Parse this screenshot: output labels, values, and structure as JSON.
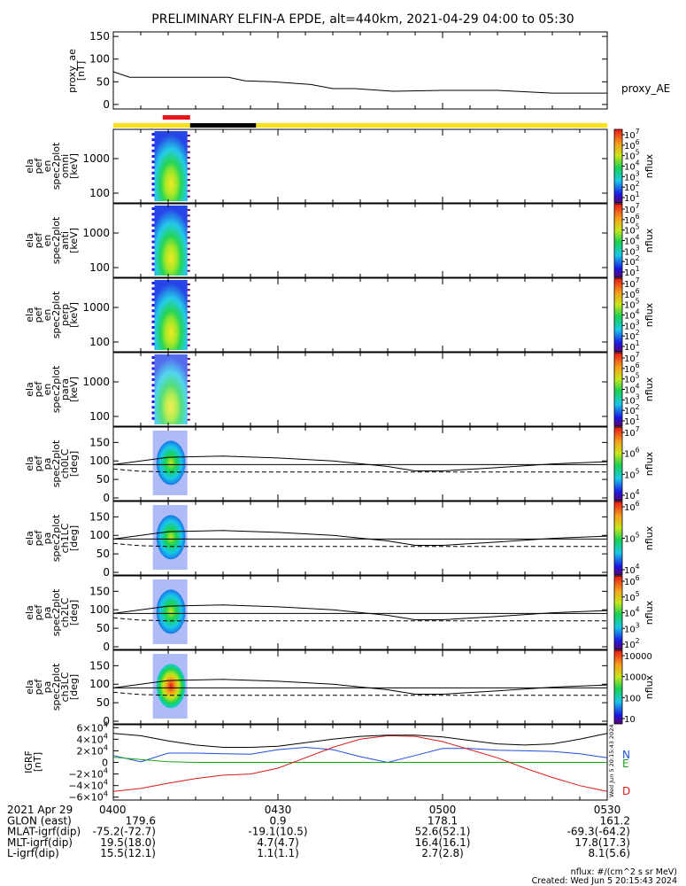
{
  "title": "PRELIMINARY ELFIN-A EPDE, alt=440km, 2021-04-29 04:00 to 05:30",
  "colors": {
    "bar_yellow": "#f7e11b",
    "bar_red": "#e8161a",
    "bar_black": "#000000",
    "line": "#000000",
    "grf_n": "#1f4fd8",
    "grf_e": "#1aa61a",
    "grf_d": "#d81a1a"
  },
  "status_bar": {
    "yellow_bar": "full",
    "red_segment": [
      "04:09",
      "04:14"
    ],
    "black_segment": [
      "04:14",
      "04:26"
    ]
  },
  "chart_data": [
    {
      "id": "proxy_ae",
      "type": "line",
      "ylabel": [
        "proxy_ae",
        "[nT]"
      ],
      "legend": "proxy_AE",
      "ylim": [
        -10,
        160
      ],
      "yticks": [
        "0",
        "50",
        "100",
        "150"
      ],
      "x_minutes": [
        0,
        3,
        9,
        15,
        21,
        24,
        29,
        36,
        40,
        44,
        51,
        60,
        70,
        80,
        90
      ],
      "values": [
        72,
        60,
        60,
        60,
        60,
        52,
        50,
        44,
        35,
        35,
        29,
        31,
        31,
        25,
        25
      ]
    },
    {
      "id": "en_omni",
      "type": "heatmap",
      "ylabel": [
        "ela",
        "pef",
        "en",
        "spec2plot",
        "omni",
        "[keV]"
      ],
      "yticks": [
        "100",
        "1000"
      ],
      "colorbar_label": "nflux",
      "colorbar_ticks": [
        "10",
        "10",
        "10",
        "10",
        "10",
        "10",
        "10"
      ],
      "colorbar_exps": [
        "7",
        "6",
        "5",
        "4",
        "3",
        "2",
        "1"
      ]
    },
    {
      "id": "en_anti",
      "type": "heatmap",
      "ylabel": [
        "ela",
        "pef",
        "en",
        "spec2plot",
        "anti",
        "[keV]"
      ],
      "yticks": [
        "100",
        "1000"
      ],
      "colorbar_label": "nflux",
      "colorbar_ticks": [
        "10",
        "10",
        "10",
        "10",
        "10",
        "10",
        "10"
      ],
      "colorbar_exps": [
        "7",
        "6",
        "5",
        "4",
        "3",
        "2",
        "1"
      ]
    },
    {
      "id": "en_perp",
      "type": "heatmap",
      "ylabel": [
        "ela",
        "pef",
        "en",
        "spec2plot",
        "perp",
        "[keV]"
      ],
      "yticks": [
        "100",
        "1000"
      ],
      "colorbar_label": "nflux",
      "colorbar_ticks": [
        "10",
        "10",
        "10",
        "10",
        "10",
        "10",
        "10"
      ],
      "colorbar_exps": [
        "7",
        "6",
        "5",
        "4",
        "3",
        "2",
        "1"
      ]
    },
    {
      "id": "en_para",
      "type": "heatmap",
      "ylabel": [
        "ela",
        "pef",
        "en",
        "spec2plot",
        "para",
        "[keV]"
      ],
      "yticks": [
        "100",
        "1000"
      ],
      "colorbar_label": "nflux",
      "colorbar_ticks": [
        "10",
        "10",
        "10",
        "10",
        "10",
        "10",
        "10"
      ],
      "colorbar_exps": [
        "7",
        "6",
        "5",
        "4",
        "3",
        "2",
        "1"
      ]
    },
    {
      "id": "pa_ch0",
      "type": "heatmap",
      "ylabel": [
        "ela",
        "pef",
        "pa",
        "spec2plot",
        "ch0LC",
        "[deg]"
      ],
      "yticks": [
        "0",
        "50",
        "100",
        "150"
      ],
      "colorbar_label": "nflux",
      "colorbar_ticks": [
        "10",
        "10",
        "10",
        "10"
      ],
      "colorbar_exps": [
        "7",
        "6",
        "5",
        "4"
      ]
    },
    {
      "id": "pa_ch1",
      "type": "heatmap",
      "ylabel": [
        "ela",
        "pef",
        "pa",
        "spec2plot",
        "ch1LC",
        "[deg]"
      ],
      "yticks": [
        "0",
        "50",
        "100",
        "150"
      ],
      "colorbar_label": "nflux",
      "colorbar_ticks": [
        "10",
        "10",
        "10"
      ],
      "colorbar_exps": [
        "6",
        "5",
        "4"
      ]
    },
    {
      "id": "pa_ch2",
      "type": "heatmap",
      "ylabel": [
        "ela",
        "pef",
        "pa",
        "spec2plot",
        "ch2LC",
        "[deg]"
      ],
      "yticks": [
        "0",
        "50",
        "100",
        "150"
      ],
      "colorbar_label": "nflux",
      "colorbar_ticks": [
        "10",
        "10",
        "10",
        "10",
        "10"
      ],
      "colorbar_exps": [
        "6",
        "5",
        "4",
        "3",
        "2"
      ]
    },
    {
      "id": "pa_ch3",
      "type": "heatmap",
      "ylabel": [
        "ela",
        "pef",
        "pa",
        "spec2plot",
        "ch3LC",
        "[deg]"
      ],
      "yticks": [
        "0",
        "50",
        "100",
        "150"
      ],
      "colorbar_label": "nflux",
      "colorbar_ticks": [
        "10000",
        "1000",
        "100",
        "10"
      ],
      "colorbar_exps": [
        "",
        "",
        "",
        ""
      ]
    },
    {
      "id": "igrf",
      "type": "line",
      "ylabel": [
        "IGRF",
        "[nT]"
      ],
      "ylim": [
        -65000,
        65000
      ],
      "yticks": [
        "6×10",
        "4×10",
        "2×10",
        "0",
        "−2×10",
        "−4×10",
        "−6×10"
      ],
      "ytick_exps": [
        "4",
        "4",
        "4",
        "",
        "4",
        "4",
        "4"
      ],
      "legend": [
        "N",
        "E",
        "D"
      ],
      "x_minutes": [
        0,
        5,
        10,
        15,
        20,
        25,
        30,
        35,
        40,
        45,
        50,
        55,
        60,
        65,
        70,
        75,
        80,
        85,
        90
      ],
      "series": [
        {
          "name": "N",
          "values": [
            12000,
            1000,
            16000,
            16000,
            15000,
            14000,
            22000,
            26000,
            22000,
            10000,
            0,
            12000,
            24000,
            24000,
            21000,
            20000,
            19000,
            15000,
            8000
          ]
        },
        {
          "name": "E",
          "values": [
            9000,
            5000,
            1000,
            0,
            0,
            0,
            0,
            0,
            0,
            0,
            0,
            0,
            0,
            0,
            0,
            0,
            0,
            0,
            0
          ]
        },
        {
          "name": "D",
          "values": [
            -50000,
            -45000,
            -36000,
            -28000,
            -22000,
            -20000,
            -10000,
            8000,
            26000,
            40000,
            46000,
            45000,
            36000,
            22000,
            8000,
            -10000,
            -26000,
            -40000,
            -50000
          ]
        },
        {
          "name": "total",
          "values": [
            50000,
            46000,
            37000,
            30000,
            26000,
            26000,
            28000,
            34000,
            40000,
            45000,
            47000,
            47000,
            44000,
            38000,
            32000,
            30000,
            32000,
            40000,
            50000
          ]
        }
      ]
    }
  ],
  "pa_lines": {
    "solid_x_minutes": [
      0,
      10,
      20,
      30,
      40,
      50,
      55,
      60,
      70,
      80,
      90
    ],
    "solid_values": [
      90,
      110,
      113,
      108,
      100,
      85,
      73,
      73,
      82,
      92,
      98
    ],
    "solid_flat": 90,
    "dashed_x_minutes": [
      0,
      5,
      10,
      90
    ],
    "dashed_values": [
      78,
      72,
      70,
      70
    ]
  },
  "x_axis": {
    "ticks": [
      "0400",
      "0430",
      "0500",
      "0530"
    ]
  },
  "footer": {
    "date": "2021 Apr 29",
    "rows": [
      {
        "label": "GLON (east)",
        "values": [
          "179.6",
          "0.9",
          "178.1",
          "161.2"
        ]
      },
      {
        "label": "MLAT-igrf(dip)",
        "values": [
          "-75.2(-72.7)",
          "-19.1(10.5)",
          "52.6(52.1)",
          "-69.3(-64.2)"
        ]
      },
      {
        "label": "MLT-igrf(dip)",
        "values": [
          "19.5(18.0)",
          "4.7(4.7)",
          "16.4(16.1)",
          "17.8(17.3)"
        ]
      },
      {
        "label": "L-igrf(dip)",
        "values": [
          "15.5(12.1)",
          "1.1(1.1)",
          "2.7(2.8)",
          "8.1(5.6)"
        ]
      }
    ],
    "units_note": "nflux: #/(cm^2 s sr MeV)",
    "created": "Created: Wed Jun  5 20:15:43 2024",
    "side_stamp": "Wed Jun  5 20:15:43 2024"
  }
}
